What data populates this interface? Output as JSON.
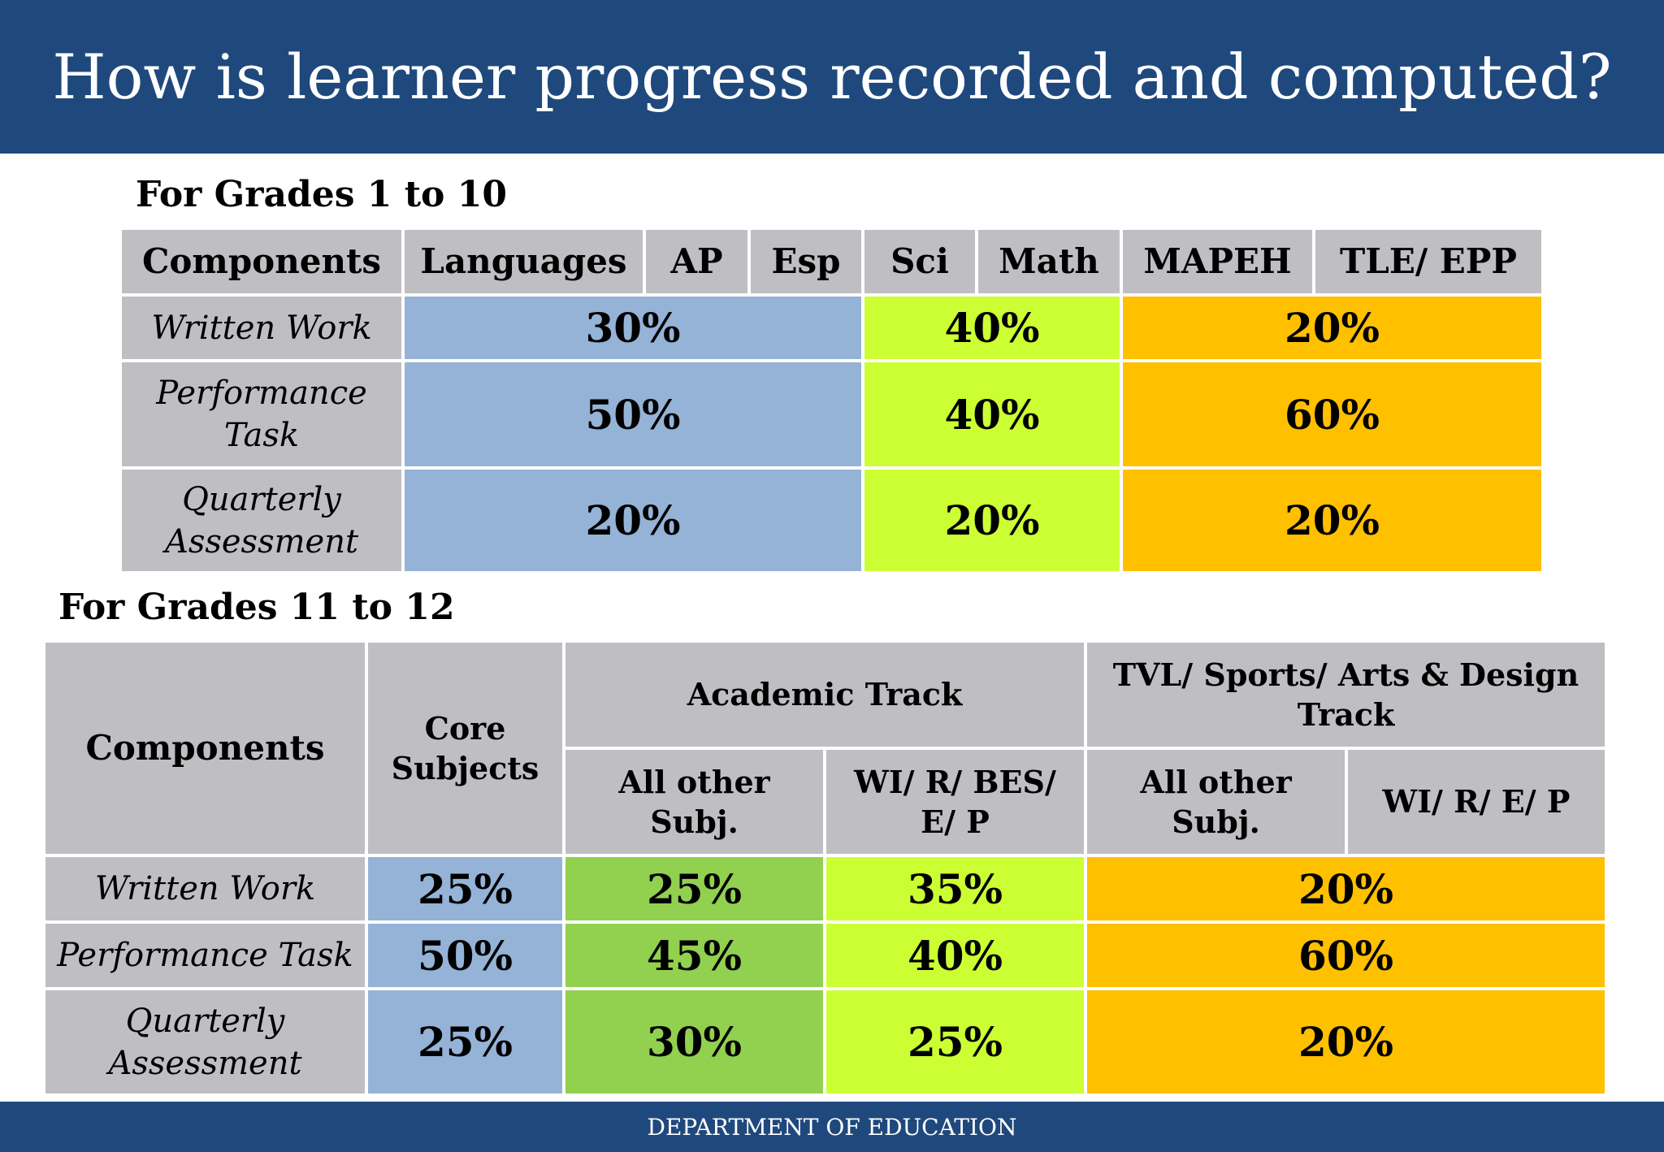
{
  "header": {
    "title": "How is learner progress recorded and computed?"
  },
  "table1": {
    "caption": "For Grades 1 to 10",
    "header": [
      "Components",
      "Languages",
      "AP",
      "Esp",
      "Sci",
      "Math",
      "MAPEH",
      "TLE/ EPP"
    ],
    "rows": [
      [
        "Written Work",
        "30%",
        "40%",
        "20%"
      ],
      [
        "Performance Task",
        "50%",
        "40%",
        "60%"
      ],
      [
        "Quarterly Assessment",
        "20%",
        "20%",
        "20%"
      ]
    ]
  },
  "table2": {
    "caption": "For Grades 11 to 12",
    "header_top": [
      "Components",
      "Core Subjects",
      "Academic Track",
      "TVL/ Sports/ Arts & Design Track"
    ],
    "header_sub": [
      "All other Subj.",
      "WI/ R/ BES/ E/ P",
      "All other Subj.",
      "WI/ R/ E/ P"
    ],
    "rows": [
      [
        "Written Work",
        "25%",
        "25%",
        "35%",
        "20%"
      ],
      [
        "Performance Task",
        "50%",
        "45%",
        "40%",
        "60%"
      ],
      [
        "Quarterly Assessment",
        "25%",
        "30%",
        "25%",
        "20%"
      ]
    ]
  },
  "footer": {
    "text": "DEPARTMENT OF EDUCATION"
  }
}
